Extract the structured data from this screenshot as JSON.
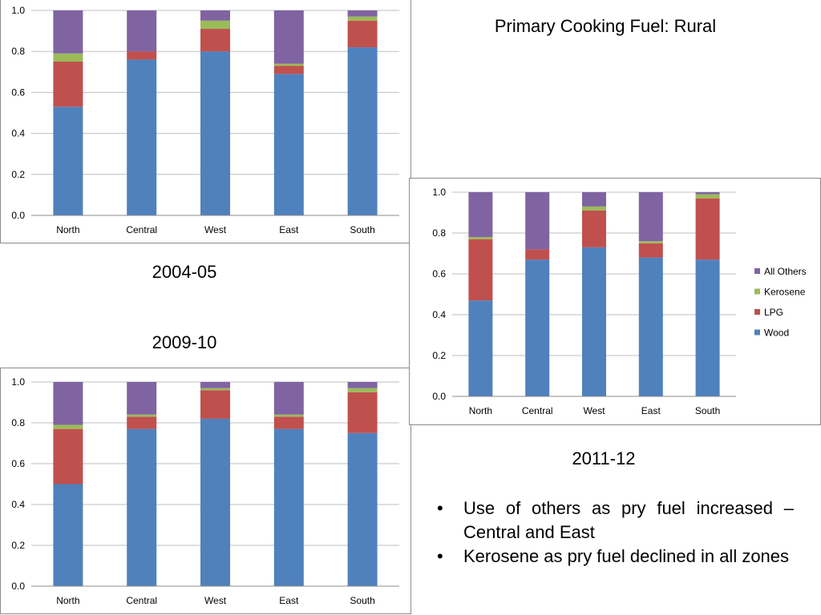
{
  "slide": {
    "title": "Primary Cooking Fuel: Rural",
    "bullets": [
      "Use of others as pry fuel increased – Central and East",
      "Kerosene as pry fuel declined in all zones"
    ],
    "bullet_glyph": "•"
  },
  "colors": {
    "Wood": "#4F81BD",
    "LPG": "#C0504D",
    "Kerosene": "#9BBB59",
    "All Others": "#8064A2",
    "gridline": "#bfbfbf"
  },
  "chart_data": [
    {
      "type": "bar",
      "stacked": true,
      "label": "2004-05",
      "categories": [
        "North",
        "Central",
        "West",
        "East",
        "South"
      ],
      "series": [
        {
          "name": "Wood",
          "values": [
            0.53,
            0.76,
            0.8,
            0.69,
            0.82
          ]
        },
        {
          "name": "LPG",
          "values": [
            0.22,
            0.04,
            0.11,
            0.04,
            0.13
          ]
        },
        {
          "name": "Kerosene",
          "values": [
            0.04,
            0.0,
            0.04,
            0.01,
            0.02
          ]
        },
        {
          "name": "All Others",
          "values": [
            0.21,
            0.2,
            0.05,
            0.26,
            0.03
          ]
        }
      ],
      "ylim": [
        0,
        1.0
      ],
      "yticks": [
        "0.0",
        "0.2",
        "0.4",
        "0.6",
        "0.8",
        "1.0"
      ],
      "grid": true,
      "legend": "none"
    },
    {
      "type": "bar",
      "stacked": true,
      "label": "2009-10",
      "categories": [
        "North",
        "Central",
        "West",
        "East",
        "South"
      ],
      "series": [
        {
          "name": "Wood",
          "values": [
            0.5,
            0.77,
            0.82,
            0.77,
            0.75
          ]
        },
        {
          "name": "LPG",
          "values": [
            0.27,
            0.06,
            0.14,
            0.06,
            0.2
          ]
        },
        {
          "name": "Kerosene",
          "values": [
            0.02,
            0.01,
            0.01,
            0.01,
            0.02
          ]
        },
        {
          "name": "All Others",
          "values": [
            0.21,
            0.16,
            0.03,
            0.16,
            0.03
          ]
        }
      ],
      "ylim": [
        0,
        1.0
      ],
      "yticks": [
        "0.0",
        "0.2",
        "0.4",
        "0.6",
        "0.8",
        "1.0"
      ],
      "grid": true,
      "legend": "none"
    },
    {
      "type": "bar",
      "stacked": true,
      "label": "2011-12",
      "categories": [
        "North",
        "Central",
        "West",
        "East",
        "South"
      ],
      "series": [
        {
          "name": "Wood",
          "values": [
            0.47,
            0.67,
            0.73,
            0.68,
            0.67
          ]
        },
        {
          "name": "LPG",
          "values": [
            0.3,
            0.05,
            0.18,
            0.07,
            0.3
          ]
        },
        {
          "name": "Kerosene",
          "values": [
            0.01,
            0.0,
            0.02,
            0.01,
            0.02
          ]
        },
        {
          "name": "All Others",
          "values": [
            0.22,
            0.28,
            0.07,
            0.24,
            0.01
          ]
        }
      ],
      "ylim": [
        0,
        1.0
      ],
      "yticks": [
        "0.0",
        "0.2",
        "0.4",
        "0.6",
        "0.8",
        "1.0"
      ],
      "grid": true,
      "legend": "right",
      "legend_order": [
        "All Others",
        "Kerosene",
        "LPG",
        "Wood"
      ]
    }
  ]
}
